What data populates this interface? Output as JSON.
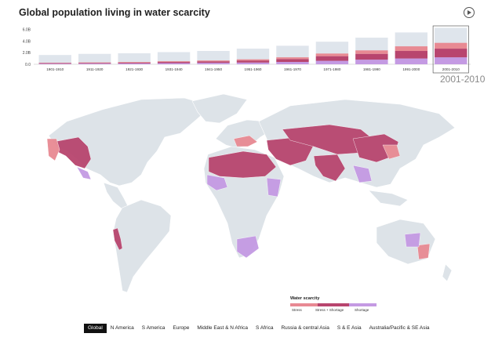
{
  "title": "Global population living in water scarcity",
  "play_icon": "play-circle-icon",
  "selected_period": "2001-2010",
  "colors": {
    "total": "#dfe5ec",
    "stress": "#e88a93",
    "stress_shortage": "#b8456e",
    "shortage": "#c49ae3",
    "land": "#dde3e8"
  },
  "chart_data": {
    "type": "bar",
    "title": "",
    "xlabel": "",
    "ylabel": "",
    "categories": [
      "1901-1910",
      "1911-1920",
      "1921-1930",
      "1931-1940",
      "1941-1950",
      "1951-1960",
      "1961-1970",
      "1971-1980",
      "1981-1990",
      "1991-2000",
      "2001-2010"
    ],
    "yticks": [
      "0.0",
      "2.0B",
      "4.0B",
      "6.0B"
    ],
    "ylim": [
      0,
      6.5
    ],
    "series": [
      {
        "name": "",
        "values": [
          1.6,
          1.8,
          1.9,
          2.1,
          2.3,
          2.7,
          3.2,
          3.9,
          4.6,
          5.5,
          6.3
        ]
      },
      {
        "name": "Stress",
        "values": [
          0.05,
          0.07,
          0.09,
          0.12,
          0.15,
          0.2,
          0.3,
          0.45,
          0.6,
          0.8,
          1.0
        ]
      },
      {
        "name": "Stress + Shortage",
        "values": [
          0.1,
          0.12,
          0.15,
          0.2,
          0.25,
          0.35,
          0.5,
          0.8,
          1.0,
          1.3,
          1.5
        ]
      },
      {
        "name": "Shortage",
        "values": [
          0.1,
          0.12,
          0.15,
          0.2,
          0.25,
          0.3,
          0.4,
          0.6,
          0.8,
          1.0,
          1.2
        ]
      }
    ],
    "legend": "bottom-right"
  },
  "legend": {
    "title": "Water scarcity",
    "items": [
      "Stress",
      "Stress + Shortage",
      "Shortage"
    ]
  },
  "regions": [
    "Global",
    "N America",
    "S America",
    "Europe",
    "Middle East & N Africa",
    "S Africa",
    "Russia & central Asia",
    "S & E Asia",
    "Australia/Pacific & SE Asia"
  ],
  "active_region": "Global"
}
